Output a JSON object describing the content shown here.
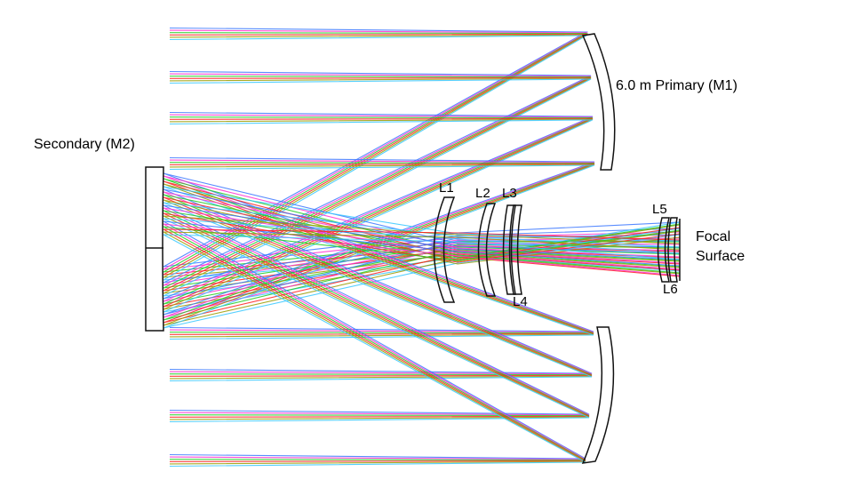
{
  "labels": {
    "primary": "6.0 m Primary (M1)",
    "secondary": "Secondary (M2)",
    "focal_line1": "Focal",
    "focal_line2": "Surface",
    "l1": "L1",
    "l2": "L2",
    "l3": "L3",
    "l4": "L4",
    "l5": "L5",
    "l6": "L6"
  },
  "ray_colors": [
    "#3c78ff",
    "#ff2fd0",
    "#22cc22",
    "#ff2020",
    "#9a9a00",
    "#38c8ff"
  ],
  "outline_color": "#111111"
}
